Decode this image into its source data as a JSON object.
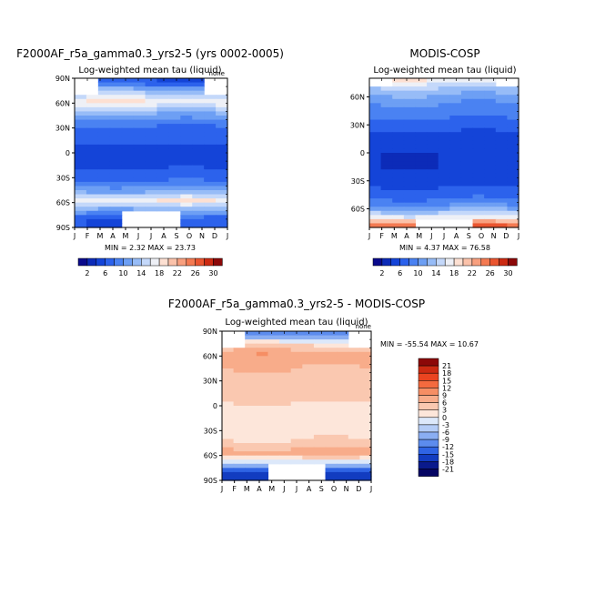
{
  "chart_data": [
    {
      "type": "heatmap",
      "title": "F2000AF_r5a_gamma0.3_yrs2-5 (yrs 0002-0005)",
      "subtitle": "Log-weighted mean tau (liquid)",
      "units": "none",
      "x_ticks": [
        "J",
        "F",
        "M",
        "A",
        "M",
        "J",
        "J",
        "A",
        "S",
        "O",
        "N",
        "D",
        "J"
      ],
      "y_ticks": [
        "90N",
        "60N",
        "30N",
        "0",
        "30S",
        "60S",
        "90S"
      ],
      "stats": "MIN =    2.32  MAX =   23.73",
      "colorbar_labels": [
        "2",
        "6",
        "10",
        "14",
        "18",
        "22",
        "26",
        "30"
      ],
      "lat_profile": [
        {
          "lat": 85,
          "value": 6
        },
        {
          "lat": 75,
          "value": 13
        },
        {
          "lat": 62,
          "value": 18
        },
        {
          "lat": 50,
          "value": 13
        },
        {
          "lat": 38,
          "value": 9
        },
        {
          "lat": 25,
          "value": 7
        },
        {
          "lat": 10,
          "value": 6
        },
        {
          "lat": -5,
          "value": 5
        },
        {
          "lat": -20,
          "value": 6
        },
        {
          "lat": -35,
          "value": 8
        },
        {
          "lat": -47,
          "value": 12
        },
        {
          "lat": -57,
          "value": 18
        },
        {
          "lat": -67,
          "value": 13
        },
        {
          "lat": -80,
          "value": 6
        }
      ]
    },
    {
      "type": "heatmap",
      "title": "MODIS-COSP",
      "subtitle": "Log-weighted mean tau (liquid)",
      "x_ticks": [
        "J",
        "F",
        "M",
        "A",
        "M",
        "J",
        "J",
        "A",
        "S",
        "O",
        "N",
        "D",
        "J"
      ],
      "y_ticks": [
        "60N",
        "30N",
        "0",
        "30S",
        "60S"
      ],
      "stats": "MIN =    4.37  MAX =   76.58",
      "colorbar_labels": [
        "2",
        "6",
        "10",
        "14",
        "18",
        "22",
        "26",
        "30"
      ],
      "lat_profile": [
        {
          "lat": 80,
          "value": 18
        },
        {
          "lat": 70,
          "value": 14
        },
        {
          "lat": 58,
          "value": 11
        },
        {
          "lat": 45,
          "value": 9
        },
        {
          "lat": 30,
          "value": 7
        },
        {
          "lat": 15,
          "value": 5
        },
        {
          "lat": 0,
          "value": 4
        },
        {
          "lat": -15,
          "value": 4
        },
        {
          "lat": -30,
          "value": 5
        },
        {
          "lat": -45,
          "value": 7
        },
        {
          "lat": -57,
          "value": 10
        },
        {
          "lat": -68,
          "value": 16
        },
        {
          "lat": -80,
          "value": 28
        }
      ]
    },
    {
      "type": "heatmap",
      "title": "F2000AF_r5a_gamma0.3_yrs2-5 - MODIS-COSP",
      "subtitle": "Log-weighted mean tau (liquid)",
      "units": "none",
      "x_ticks": [
        "J",
        "F",
        "M",
        "A",
        "M",
        "J",
        "J",
        "A",
        "S",
        "O",
        "N",
        "D",
        "J"
      ],
      "y_ticks": [
        "90N",
        "60N",
        "30N",
        "0",
        "30S",
        "60S",
        "90S"
      ],
      "stats": "MIN = -55.54  MAX =   10.67",
      "colorbar_labels": [
        "21",
        "18",
        "15",
        "12",
        "9",
        "6",
        "3",
        "0",
        "-3",
        "-6",
        "-9",
        "-12",
        "-15",
        "-18",
        "-21"
      ],
      "lat_profile": [
        {
          "lat": 85,
          "value": -12
        },
        {
          "lat": 75,
          "value": 1
        },
        {
          "lat": 62,
          "value": 7
        },
        {
          "lat": 50,
          "value": 5
        },
        {
          "lat": 38,
          "value": 4
        },
        {
          "lat": 25,
          "value": 3
        },
        {
          "lat": 10,
          "value": 2
        },
        {
          "lat": -5,
          "value": 1
        },
        {
          "lat": -20,
          "value": 1
        },
        {
          "lat": -35,
          "value": 1
        },
        {
          "lat": -47,
          "value": 2
        },
        {
          "lat": -57,
          "value": 7
        },
        {
          "lat": -67,
          "value": -3
        },
        {
          "lat": -80,
          "value": -18
        }
      ]
    }
  ],
  "colors": {
    "seq": [
      "#0a0a8c",
      "#0c2bb8",
      "#1444d8",
      "#2c62ec",
      "#4a82f2",
      "#6d9ff4",
      "#97bcf7",
      "#c4d8fa",
      "#eef0f6",
      "#fde0d2",
      "#fbc2aa",
      "#f8a07f",
      "#f47a52",
      "#ea5530",
      "#cc2a12",
      "#8c0808"
    ],
    "div": [
      "#8c0808",
      "#cc2a12",
      "#ea4420",
      "#f46a3e",
      "#f68e64",
      "#f8ac8a",
      "#fac8b0",
      "#fde6da",
      "#dce8fa",
      "#b4ccf6",
      "#8aaef2",
      "#5c8cee",
      "#2f64e4",
      "#123cc0",
      "#0a1a8c"
    ]
  }
}
